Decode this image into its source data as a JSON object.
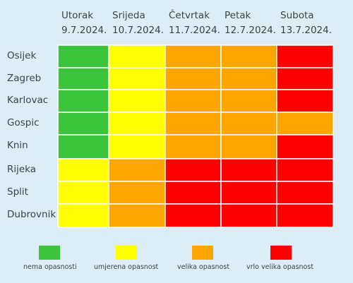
{
  "chart_data": {
    "type": "heatmap",
    "days": [
      {
        "name": "Utorak",
        "date": "9.7.2024."
      },
      {
        "name": "Srijeda",
        "date": "10.7.2024."
      },
      {
        "name": "Četvrtak",
        "date": "11.7.2024."
      },
      {
        "name": "Petak",
        "date": "12.7.2024."
      },
      {
        "name": "Subota",
        "date": "13.7.2024."
      }
    ],
    "cities": [
      "Osijek",
      "Zagreb",
      "Karlovac",
      "Gospic",
      "Knin",
      "Rijeka",
      "Split",
      "Dubrovnik"
    ],
    "levels": [
      {
        "label": "nema opasnosti",
        "color": "#3cc43c"
      },
      {
        "label": "umjerena opasnost",
        "color": "#ffff00"
      },
      {
        "label": "velika opasnost",
        "color": "#ffa500"
      },
      {
        "label": "vrlo velika opasnost",
        "color": "#ff0000"
      }
    ],
    "values": [
      [
        0,
        1,
        2,
        2,
        3
      ],
      [
        0,
        1,
        2,
        2,
        3
      ],
      [
        0,
        1,
        2,
        2,
        3
      ],
      [
        0,
        1,
        2,
        2,
        2
      ],
      [
        0,
        1,
        2,
        2,
        3
      ],
      [
        1,
        2,
        3,
        3,
        3
      ],
      [
        1,
        2,
        3,
        3,
        3
      ],
      [
        1,
        2,
        3,
        3,
        3
      ]
    ]
  }
}
